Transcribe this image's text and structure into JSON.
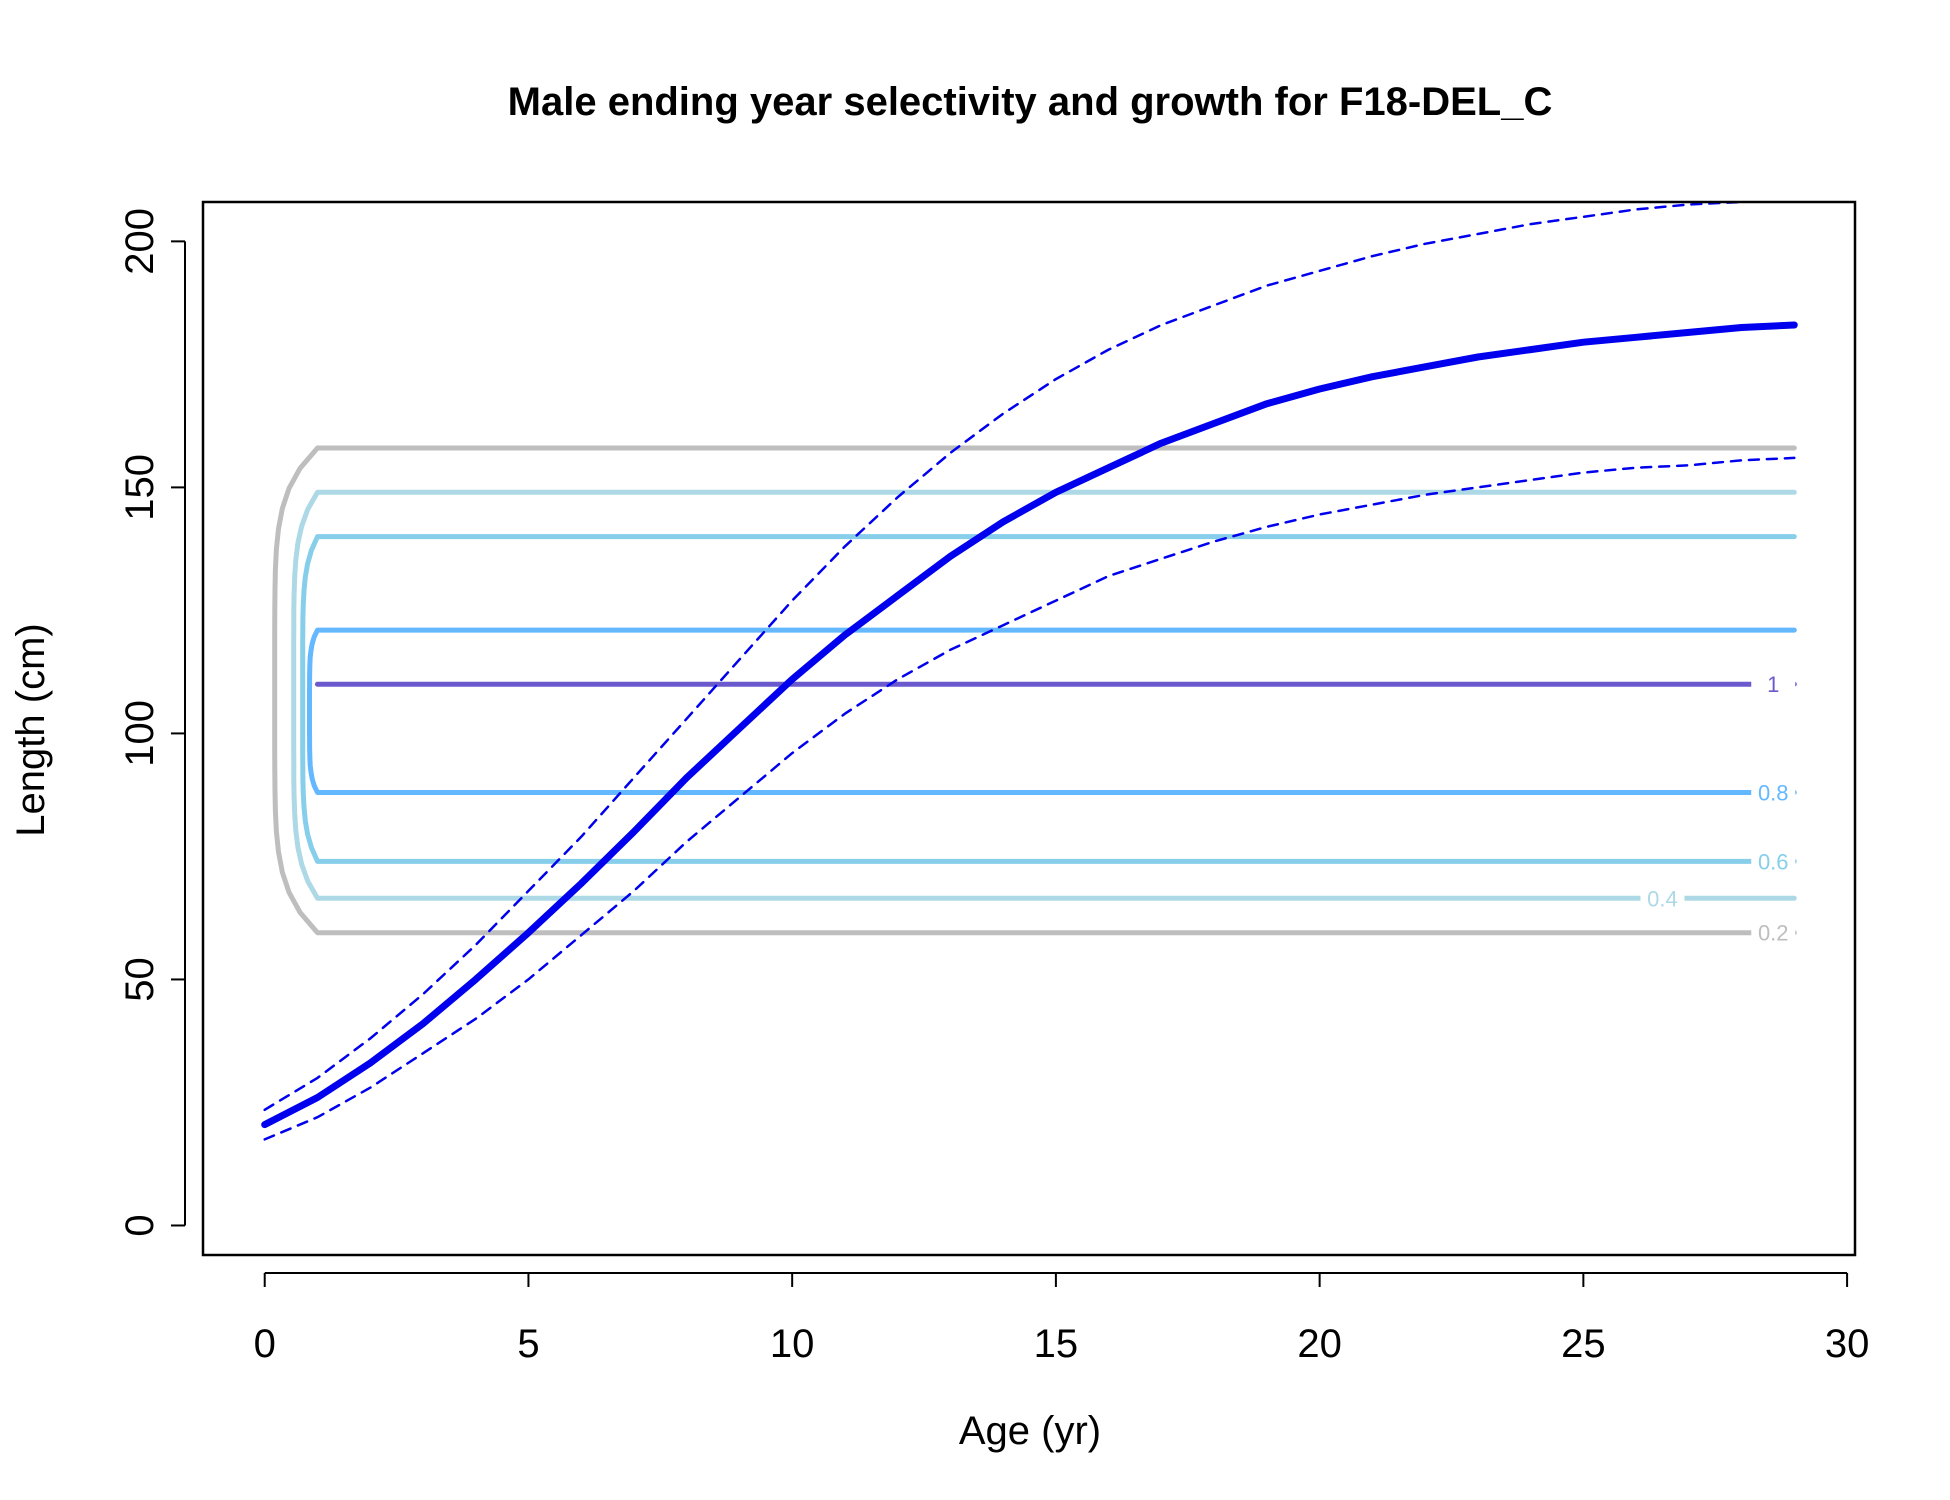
{
  "chart_data": {
    "type": "line",
    "title": "Male ending year selectivity and growth for F18-DEL_C",
    "xlabel": "Age (yr)",
    "ylabel": "Length (cm)",
    "xlim": [
      -1.17,
      30.15
    ],
    "ylim": [
      -6,
      208
    ],
    "xticks": [
      0,
      5,
      10,
      15,
      20,
      25,
      30
    ],
    "yticks": [
      0,
      50,
      100,
      150,
      200
    ],
    "xtick_labels": [
      "0",
      "5",
      "10",
      "15",
      "20",
      "25",
      "30"
    ],
    "ytick_labels": [
      "0",
      "50",
      "100",
      "150",
      "200"
    ],
    "grid": false,
    "series": [
      {
        "role": "mean",
        "style": "solid-thick",
        "color": "#0000ee",
        "x": [
          0,
          1,
          2,
          3,
          4,
          5,
          6,
          7,
          8,
          9,
          10,
          11,
          12,
          13,
          14,
          15,
          16,
          17,
          18,
          19,
          20,
          21,
          22,
          23,
          24,
          25,
          26,
          27,
          28,
          29
        ],
        "y": [
          20.5,
          26,
          33,
          41,
          50,
          59.5,
          69.5,
          80,
          91,
          101,
          111,
          120,
          128,
          136,
          143,
          149,
          154,
          159,
          163,
          167,
          170,
          172.5,
          174.5,
          176.5,
          178,
          179.5,
          180.5,
          181.5,
          182.5,
          183
        ]
      },
      {
        "role": "upper",
        "style": "dashed",
        "color": "#0000ee",
        "x": [
          0,
          1,
          2,
          3,
          4,
          5,
          6,
          7,
          8,
          9,
          10,
          11,
          12,
          13,
          14,
          15,
          16,
          17,
          18,
          19,
          20,
          21,
          22,
          23,
          24,
          25,
          26,
          27,
          28
        ],
        "y": [
          23.5,
          30,
          38,
          47,
          57,
          68,
          79,
          91,
          103,
          115,
          127,
          138,
          148,
          157,
          165,
          172,
          178,
          183,
          187,
          191,
          194,
          197,
          199.5,
          201.5,
          203.5,
          205,
          206.5,
          207.5,
          208
        ]
      },
      {
        "role": "lower",
        "style": "dashed",
        "color": "#0000ee",
        "x": [
          0,
          1,
          2,
          3,
          4,
          5,
          6,
          7,
          8,
          9,
          10,
          11,
          12,
          13,
          14,
          15,
          16,
          17,
          18,
          19,
          20,
          21,
          22,
          23,
          24,
          25,
          26,
          27,
          28,
          29
        ],
        "y": [
          17.5,
          22,
          28,
          35,
          42,
          50,
          59,
          68,
          78,
          87,
          96,
          104,
          111,
          117,
          122,
          127,
          132,
          135.5,
          139,
          142,
          144.5,
          146.5,
          148.5,
          150,
          151.5,
          153,
          154,
          154.5,
          155.5,
          156
        ]
      }
    ],
    "contours": [
      {
        "level": "0.2",
        "color": "#bebebe",
        "lo": 59.5,
        "hi": 158,
        "bulge": 0.19,
        "label": "0.2",
        "label_side": "lo"
      },
      {
        "level": "0.4",
        "color": "#add8e6",
        "lo": 66.5,
        "hi": 149,
        "bulge": 0.55,
        "label": "0.4",
        "label_side": "lo"
      },
      {
        "level": "0.6",
        "color": "#87ceeb",
        "lo": 74,
        "hi": 140,
        "bulge": 0.72,
        "label": "0.6",
        "label_side": "lo"
      },
      {
        "level": "0.8",
        "color": "#63b8ff",
        "lo": 88,
        "hi": 121,
        "bulge": 0.85,
        "label": "0.8",
        "label_side": "lo"
      },
      {
        "level": "1",
        "color": "#6a5acd",
        "lo": 110,
        "hi": 110,
        "bulge": 1,
        "label": "1",
        "label_side": "mid"
      }
    ]
  }
}
